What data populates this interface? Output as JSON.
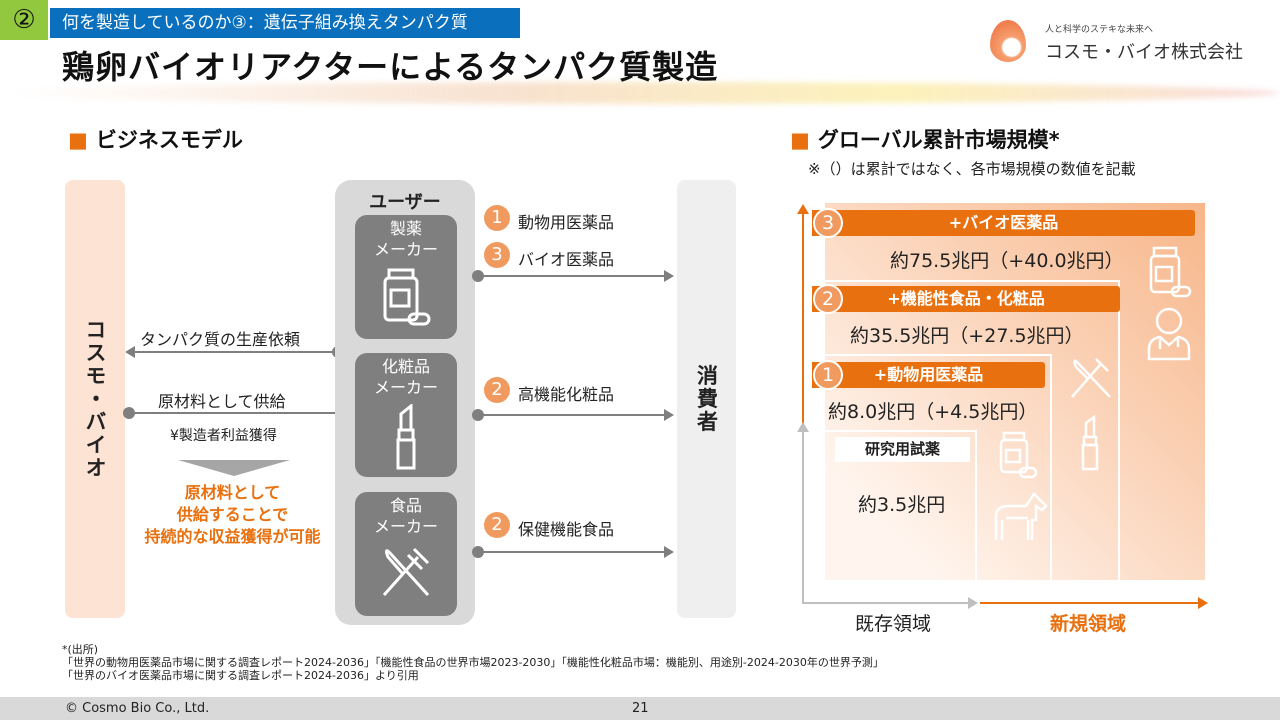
{
  "header": {
    "section_number": "②",
    "subtitle": "何を製造しているのか③：遺伝子組み換えタンパク質",
    "title": "鶏卵バイオリアクターによるタンパク質製造"
  },
  "logo": {
    "tagline": "人と科学のステキな未来へ",
    "name": "コスモ・バイオ株式会社"
  },
  "business_model": {
    "heading": "ビジネスモデル",
    "cosmo_bio": "コスモ・バイオ",
    "request_label": "タンパク質の生産依頼",
    "supply_label": "原材料として供給",
    "profit_label": "¥製造者利益獲得",
    "benefit_text": [
      "原材料として",
      "供給することで",
      "持続的な収益獲得が可能"
    ],
    "users_title": "ユーザー",
    "users": [
      {
        "label": [
          "製薬",
          "メーカー"
        ],
        "icon": "medicine-bottle-icon"
      },
      {
        "label": [
          "化粧品",
          "メーカー"
        ],
        "icon": "lipstick-icon"
      },
      {
        "label": [
          "食品",
          "メーカー"
        ],
        "icon": "fork-knife-icon"
      }
    ],
    "products": [
      {
        "num": "1",
        "label": "動物用医薬品"
      },
      {
        "num": "3",
        "label": "バイオ医薬品"
      },
      {
        "num": "2",
        "label": "高機能化粧品"
      },
      {
        "num": "2",
        "label": "保健機能食品"
      }
    ],
    "consumer": "消費者"
  },
  "market": {
    "heading": "グローバル累計市場規模*",
    "note": "※（）は累計ではなく、各市場規模の数値を記載",
    "tiers": [
      {
        "num": "3",
        "label": "+バイオ医薬品",
        "value": "約75.5兆円（+40.0兆円）"
      },
      {
        "num": "2",
        "label": "+機能性食品・化粧品",
        "value": "約35.5兆円（+27.5兆円）"
      },
      {
        "num": "1",
        "label": "+動物用医薬品",
        "value": "約8.0兆円（+4.5兆円）"
      }
    ],
    "base_label": "研究用試薬",
    "base_value": "約3.5兆円",
    "existing": "既存領域",
    "new": "新規領域",
    "accent": "#e8700f"
  },
  "sources": {
    "title": "*(出所)",
    "line1": "「世界の動物用医薬品市場に関する調査レポート2024-2036」「機能性食品の世界市場2023-2030」「機能性化粧品市場：機能別、用途別-2024-2030年の世界予測」",
    "line2": "「世界のバイオ医薬品市場に関する調査レポート2024-2036」より引用"
  },
  "footer": {
    "copyright": "©  Cosmo Bio Co., Ltd.",
    "page": "21"
  }
}
